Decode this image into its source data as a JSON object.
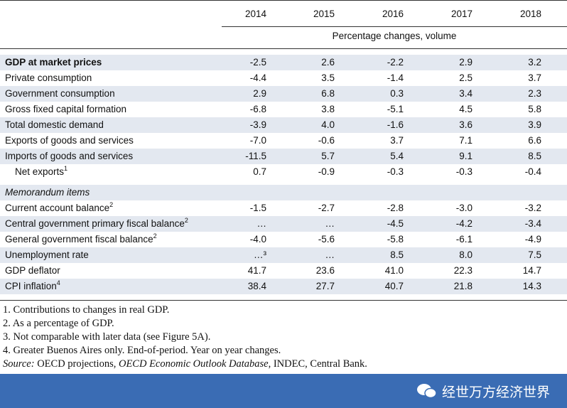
{
  "table": {
    "years": [
      "2014",
      "2015",
      "2016",
      "2017",
      "2018"
    ],
    "subheader": "Percentage changes, volume",
    "rows": [
      {
        "label": "GDP at market prices",
        "values": [
          "-2.5",
          "2.6",
          "-2.2",
          "2.9",
          "3.2"
        ]
      },
      {
        "label": "Private consumption",
        "values": [
          "-4.4",
          "3.5",
          "-1.4",
          "2.5",
          "3.7"
        ]
      },
      {
        "label": "Government consumption",
        "values": [
          "2.9",
          "6.8",
          "0.3",
          "3.4",
          "2.3"
        ]
      },
      {
        "label": "Gross fixed capital formation",
        "values": [
          "-6.8",
          "3.8",
          "-5.1",
          "4.5",
          "5.8"
        ]
      },
      {
        "label": "Total domestic demand",
        "values": [
          "-3.9",
          "4.0",
          "-1.6",
          "3.6",
          "3.9"
        ]
      },
      {
        "label": "Exports of goods and services",
        "values": [
          "-7.0",
          "-0.6",
          "3.7",
          "7.1",
          "6.6"
        ]
      },
      {
        "label": "Imports of goods and services",
        "values": [
          "-11.5",
          "5.7",
          "5.4",
          "9.1",
          "8.5"
        ]
      },
      {
        "label": "Net exports",
        "note": "1",
        "values": [
          "0.7",
          "-0.9",
          "-0.3",
          "-0.3",
          "-0.4"
        ]
      }
    ],
    "memo_title": "Memorandum items",
    "memo_rows": [
      {
        "label": "Current account balance",
        "note": "2",
        "values": [
          "-1.5",
          "-2.7",
          "-2.8",
          "-3.0",
          "-3.2"
        ]
      },
      {
        "label": "Central government primary fiscal balance",
        "note": "2",
        "values": [
          "…",
          "…",
          "-4.5",
          "-4.2",
          "-3.4"
        ]
      },
      {
        "label": "General government fiscal balance",
        "note": "2",
        "values": [
          "-4.0",
          "-5.6",
          "-5.8",
          "-6.1",
          "-4.9"
        ]
      },
      {
        "label": "Unemployment rate",
        "values": [
          "…³",
          "…",
          "8.5",
          "8.0",
          "7.5"
        ]
      },
      {
        "label": "GDP deflator",
        "values": [
          "41.7",
          "23.6",
          "41.0",
          "22.3",
          "14.7"
        ]
      },
      {
        "label": "CPI inflation",
        "note": "4",
        "values": [
          "38.4",
          "27.7",
          "40.7",
          "21.8",
          "14.3"
        ]
      }
    ]
  },
  "footnotes": [
    "1.  Contributions to changes in real GDP.",
    "2.  As a percentage of GDP.",
    "3.  Not comparable with later data (see Figure 5A).",
    "4.  Greater Buenos Aires only. End-of-period. Year on year changes."
  ],
  "source": {
    "label": "Source:",
    "parts": [
      " OECD projections, ",
      "OECD Economic Outlook Database",
      ", INDEC, Central Bank."
    ]
  },
  "watermark": "经世万方经济世界"
}
